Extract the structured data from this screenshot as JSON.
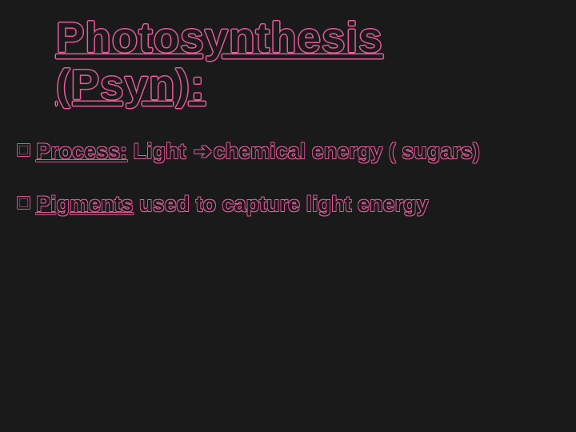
{
  "slide": {
    "background_color": "#1a1a1a",
    "outline_color": "#e85a9a",
    "title": {
      "line1": "Photosynthesis",
      "line2": "(Psyn):",
      "fontsize": 53,
      "underline": true,
      "color": "#1a1a1a"
    },
    "bullets": [
      {
        "marker": "square-outline",
        "lead_underlined": "Process:",
        "pre_arrow": "  Light ",
        "arrow": "➔",
        "post_arrow": "chemical energy ( sugars)"
      },
      {
        "marker": "square-outline",
        "lead_underlined": "Pigments",
        "rest": " used to capture light energy"
      }
    ],
    "bullet_fontsize": 27,
    "bullet_marker_size": 15
  }
}
